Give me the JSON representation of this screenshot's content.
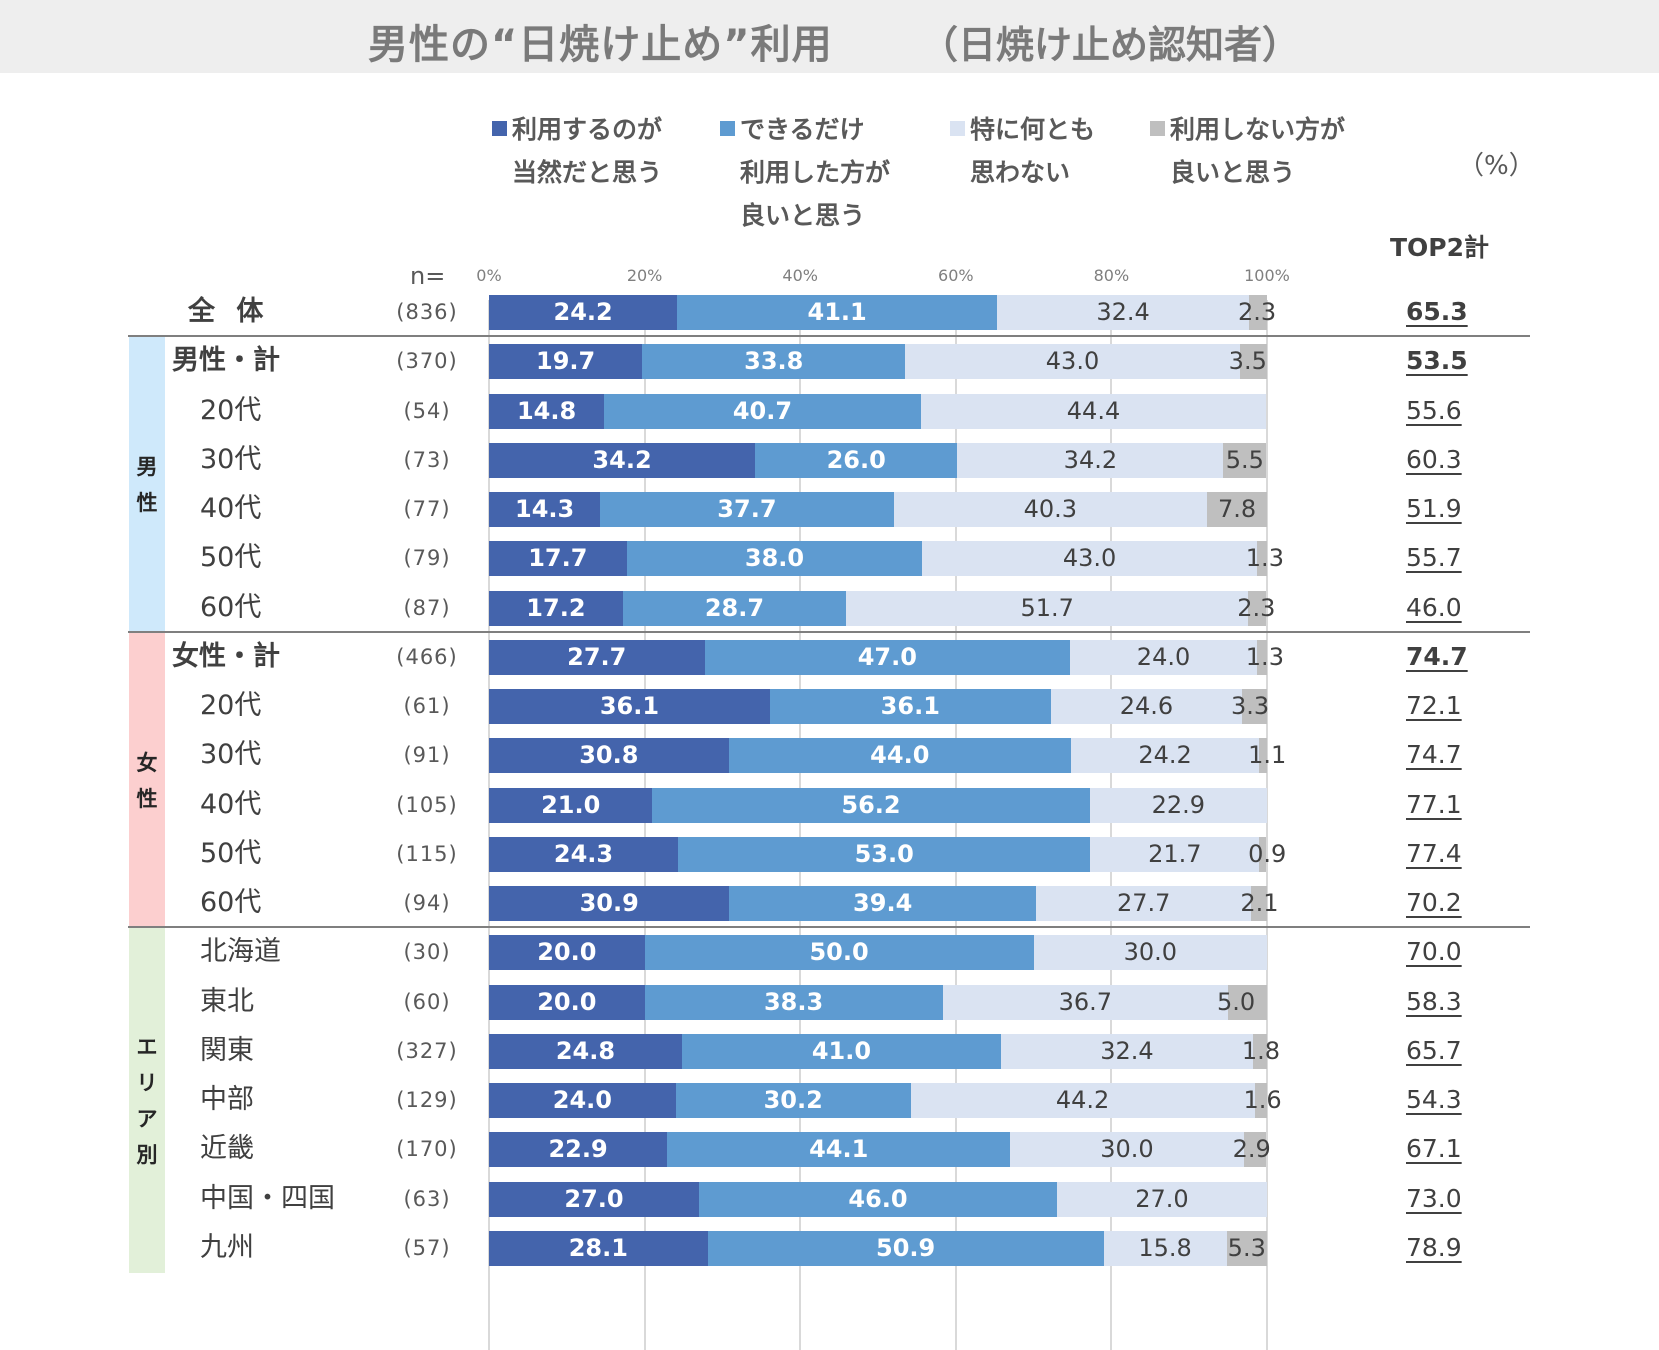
{
  "header": {
    "title": "男性の“日焼け止め”利用",
    "subtitle": "（日焼け止め認知者）"
  },
  "chart_data": {
    "type": "bar",
    "orientation": "horizontal-stacked-100",
    "title": "男性の“日焼け止め”利用",
    "subtitle": "（日焼け止め認知者）",
    "unit": "（%）",
    "n_header": "n=",
    "top2_header": "TOP2計",
    "xlim": [
      0,
      100
    ],
    "xticks": [
      "0%",
      "20%",
      "40%",
      "60%",
      "80%",
      "100%"
    ],
    "grid": true,
    "legend_position": "top",
    "series": [
      {
        "name": "利用するのが当然だと思う",
        "lines": [
          "利用するのが",
          "当然だと思う"
        ],
        "color": "#4464ac",
        "values": [
          24.2,
          19.7,
          14.8,
          34.2,
          14.3,
          17.7,
          17.2,
          27.7,
          36.1,
          30.8,
          21.0,
          24.3,
          30.9,
          20.0,
          20.0,
          24.8,
          24.0,
          22.9,
          27.0,
          28.1
        ]
      },
      {
        "name": "できるだけ利用した方が良いと思う",
        "lines": [
          "できるだけ",
          "利用した方が",
          "良いと思う"
        ],
        "color": "#5e9bd1",
        "values": [
          41.1,
          33.8,
          40.7,
          26.0,
          37.7,
          38.0,
          28.7,
          47.0,
          36.1,
          44.0,
          56.2,
          53.0,
          39.4,
          50.0,
          38.3,
          41.0,
          30.2,
          44.1,
          46.0,
          50.9
        ]
      },
      {
        "name": "特に何とも思わない",
        "lines": [
          "特に何とも",
          "思わない"
        ],
        "color": "#dae3f2",
        "values": [
          32.4,
          43.0,
          44.4,
          34.2,
          40.3,
          43.0,
          51.7,
          24.0,
          24.6,
          24.2,
          22.9,
          21.7,
          27.7,
          30.0,
          36.7,
          32.4,
          44.2,
          30.0,
          27.0,
          15.8
        ]
      },
      {
        "name": "利用しない方が良いと思う",
        "lines": [
          "利用しない方が",
          "良いと思う"
        ],
        "color": "#bfbfbf",
        "values": [
          2.3,
          3.5,
          null,
          5.5,
          7.8,
          1.3,
          2.3,
          1.3,
          3.3,
          1.1,
          null,
          0.9,
          2.1,
          null,
          5.0,
          1.8,
          1.6,
          2.9,
          null,
          5.3
        ]
      }
    ],
    "rows": [
      {
        "label": "全 体",
        "n": "(836)",
        "top2": "65.3",
        "style": "total"
      },
      {
        "label": "男性・計",
        "n": "(370)",
        "top2": "53.5",
        "style": "bold"
      },
      {
        "label": "20代",
        "n": "(54)",
        "top2": "55.6",
        "style": "sub"
      },
      {
        "label": "30代",
        "n": "(73)",
        "top2": "60.3",
        "style": "sub"
      },
      {
        "label": "40代",
        "n": "(77)",
        "top2": "51.9",
        "style": "sub"
      },
      {
        "label": "50代",
        "n": "(79)",
        "top2": "55.7",
        "style": "sub"
      },
      {
        "label": "60代",
        "n": "(87)",
        "top2": "46.0",
        "style": "sub"
      },
      {
        "label": "女性・計",
        "n": "(466)",
        "top2": "74.7",
        "style": "bold"
      },
      {
        "label": "20代",
        "n": "(61)",
        "top2": "72.1",
        "style": "sub"
      },
      {
        "label": "30代",
        "n": "(91)",
        "top2": "74.7",
        "style": "sub"
      },
      {
        "label": "40代",
        "n": "(105)",
        "top2": "77.1",
        "style": "sub"
      },
      {
        "label": "50代",
        "n": "(115)",
        "top2": "77.4",
        "style": "sub"
      },
      {
        "label": "60代",
        "n": "(94)",
        "top2": "70.2",
        "style": "sub"
      },
      {
        "label": "北海道",
        "n": "(30)",
        "top2": "70.0",
        "style": "sub"
      },
      {
        "label": "東北",
        "n": "(60)",
        "top2": "58.3",
        "style": "sub"
      },
      {
        "label": "関東",
        "n": "(327)",
        "top2": "65.7",
        "style": "sub"
      },
      {
        "label": "中部",
        "n": "(129)",
        "top2": "54.3",
        "style": "sub"
      },
      {
        "label": "近畿",
        "n": "(170)",
        "top2": "67.1",
        "style": "sub"
      },
      {
        "label": "中国・四国",
        "n": "(63)",
        "top2": "73.0",
        "style": "sub"
      },
      {
        "label": "九州",
        "n": "(57)",
        "top2": "78.9",
        "style": "sub"
      }
    ],
    "groups": [
      {
        "label": "男性",
        "chars": [
          "男",
          "性"
        ],
        "color": "#cfe9fb",
        "first_row": 1,
        "last_row": 6
      },
      {
        "label": "女性",
        "chars": [
          "女",
          "性"
        ],
        "color": "#fccfcf",
        "first_row": 7,
        "last_row": 12
      },
      {
        "label": "エリア別",
        "chars": [
          "エ",
          "リ",
          "ア",
          "別"
        ],
        "color": "#e2f0d9",
        "first_row": 13,
        "last_row": 19
      }
    ]
  }
}
